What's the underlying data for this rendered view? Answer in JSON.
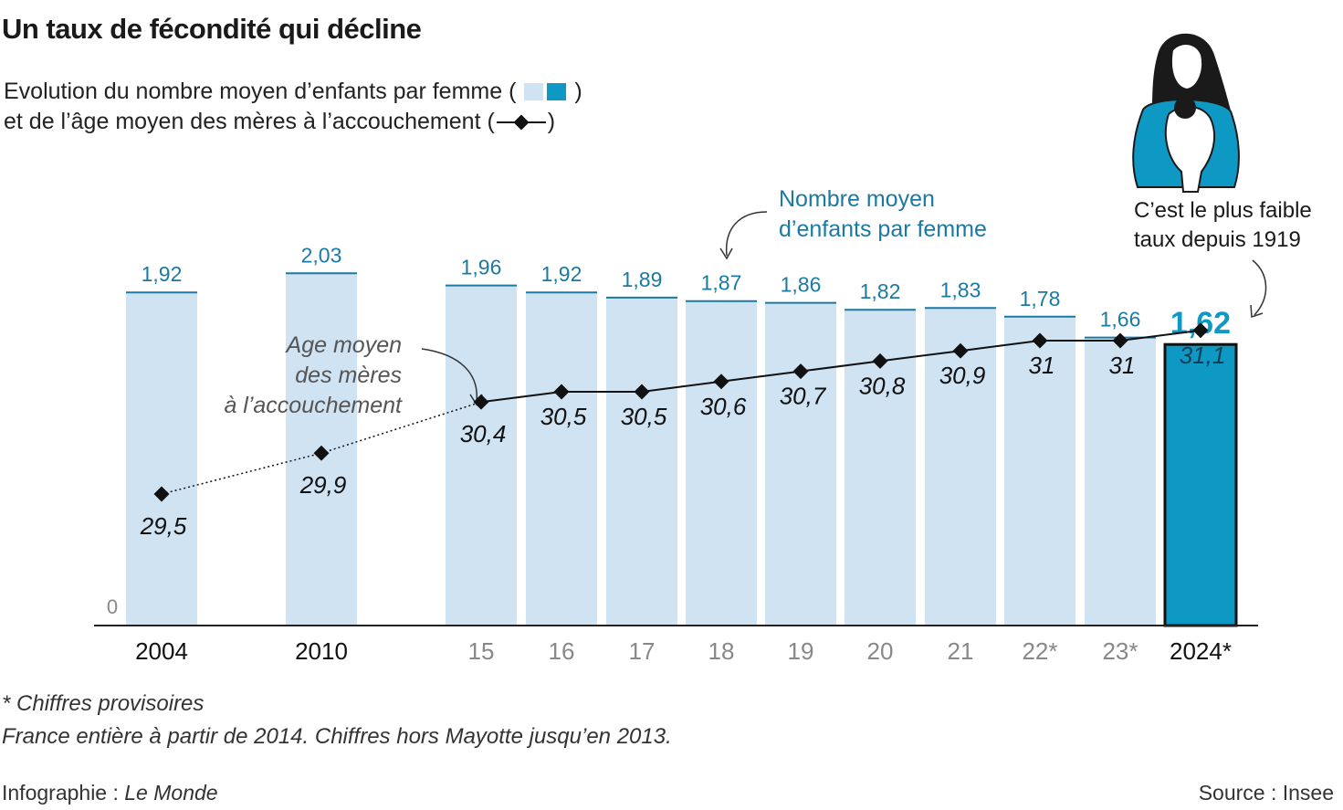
{
  "title": "Un taux de fécondité qui décline",
  "legend": {
    "line1_prefix": "Evolution du nombre moyen d’enfants par femme (",
    "line1_suffix": ")",
    "line2_prefix": "et de l’âge moyen des mères à l’accouchement (",
    "line2_suffix": ")"
  },
  "annotations": {
    "bars_label_1": "Nombre moyen",
    "bars_label_2": "d’enfants par femme",
    "line_label_1": "Age moyen",
    "line_label_2": "des mères",
    "line_label_3": "à l’accouchement",
    "record_1": "C’est le plus faible",
    "record_2": "taux depuis 1919"
  },
  "footnotes": {
    "provisional": "* Chiffres provisoires",
    "scope": "France entière à partir de 2014. Chiffres hors Mayotte jusqu’en 2013."
  },
  "credit_prefix": "Infographie : ",
  "credit_name": "Le Monde",
  "source": "Source : Insee",
  "colors": {
    "bar_light": "#cfe3f3",
    "bar_highlight": "#0e98c4",
    "bar_label": "#1a7aa3",
    "line": "#111111"
  },
  "chart_data": {
    "type": "bar",
    "categories": [
      "2004",
      "2010",
      "15",
      "16",
      "17",
      "18",
      "19",
      "20",
      "21",
      "22*",
      "23*",
      "2024*"
    ],
    "zero_label": "0",
    "ylim": [
      0,
      2.1
    ],
    "series": [
      {
        "values": [
          1.92,
          2.03,
          1.96,
          1.92,
          1.89,
          1.87,
          1.86,
          1.82,
          1.83,
          1.78,
          1.66,
          1.62
        ],
        "labels": [
          "1,92",
          "2,03",
          "1,96",
          "1,92",
          "1,89",
          "1,87",
          "1,86",
          "1,82",
          "1,83",
          "1,78",
          "1,66",
          "1,62"
        ]
      },
      {
        "type": "line",
        "values": [
          29.5,
          29.9,
          30.4,
          30.5,
          30.5,
          30.6,
          30.7,
          30.8,
          30.9,
          31,
          31,
          31.1
        ],
        "labels": [
          "29,5",
          "29,9",
          "30,4",
          "30,5",
          "30,5",
          "30,6",
          "30,7",
          "30,8",
          "30,9",
          "31",
          "31",
          "31,1"
        ]
      }
    ],
    "highlight_index": 11
  }
}
